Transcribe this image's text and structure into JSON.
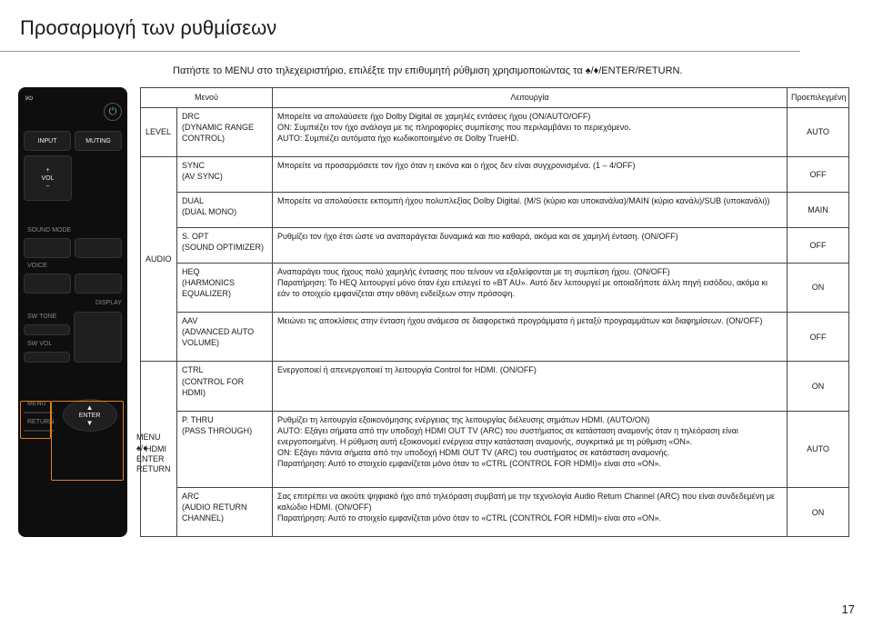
{
  "page": {
    "title": "Προσαρμογή των ρυθμίσεων",
    "intro": "Πατήστε το MENU στο τηλεχειριστήριο, επιλέξτε την επιθυμητή ρύθμιση χρησιμοποιώντας τα ♠/♦/ENTER/RETURN.",
    "number": "17"
  },
  "remote": {
    "indicator": "I/⏻",
    "buttons": {
      "input": "INPUT",
      "muting": "MUTING",
      "vol": "VOL",
      "sound_mode": "SOUND MODE",
      "voice": "VOICE",
      "display": "DISPLAY",
      "sw_tone": "SW TONE",
      "sw_vol": "SW VOL",
      "menu": "MENU",
      "return": "RETURN",
      "enter": "ENTER"
    },
    "caption_lines": [
      "MENU",
      "♠/♦",
      "ENTER",
      "RETURN"
    ]
  },
  "table": {
    "headers": {
      "menu": "Μενού",
      "func": "Λειτουργία",
      "default": "Προεπιλεγμένη"
    },
    "sections": [
      {
        "category": "LEVEL",
        "rows": [
          {
            "menu": "DRC\n(DYNAMIC RANGE CONTROL)",
            "func": "Μπορείτε να απολαύσετε ήχο Dolby Digital σε χαμηλές εντάσεις ήχου (ON/AUTO/OFF)\nON: Συμπιέζει τον ήχο ανάλογα με τις πληροφορίες συμπίεσης που περιλαμβάνει το περιεχόμενο.\nAUTO: Συμπιέζει αυτόματα ήχο κωδικοποιημένο σε Dolby TrueHD.",
            "default": "AUTO"
          }
        ]
      },
      {
        "category": "AUDIO",
        "rows": [
          {
            "menu": "SYNC\n(AV SYNC)",
            "func": "Μπορείτε να προσαρμόσετε τον ήχο όταν η εικόνα και ο ήχος δεν είναι συγχρονισμένα. (1 – 4/OFF)",
            "default": "OFF"
          },
          {
            "menu": "DUAL\n(DUAL MONO)",
            "func": "Μπορείτε να απολαύσετε εκπομπή ήχου πολυπλεξίας Dolby Digital. (M/S (κύριο και υποκανάλια)/MAIN (κύριο κανάλι)/SUB (υποκανάλι))",
            "default": "MAIN"
          },
          {
            "menu": "S. OPT\n(SOUND OPTIMIZER)",
            "func": "Ρυθμίζει τον ήχο έτσι ώστε να αναπαράγεται δυναμικά και πιο καθαρά, ακόμα και σε χαμηλή ένταση. (ON/OFF)",
            "default": "OFF"
          },
          {
            "menu": "HEQ\n(HARMONICS EQUALIZER)",
            "func": "Αναπαράγει τους ήχους πολύ χαμηλής έντασης που τείνουν να εξαλείφονται με τη συμπίεση ήχου. (ON/OFF)\nΠαρατήρηση: Το HEQ λειτουργεί μόνο όταν έχει επιλεγεί το «BT AU». Αυτό δεν λειτουργεί με οποιαδήποτε άλλη πηγή εισόδου, ακόμα κι εάν το στοιχείο εμφανίζεται στην οθόνη ενδείξεων στην πρόσοψη.",
            "default": "ON"
          },
          {
            "menu": "AAV\n(ADVANCED AUTO VOLUME)",
            "func": "Μειώνει τις αποκλίσεις στην ένταση ήχου ανάμεσα σε διαφορετικά προγράμματα ή μεταξύ προγραμμάτων και διαφημίσεων. (ON/OFF)",
            "default": "OFF"
          }
        ]
      },
      {
        "category": "HDMI",
        "rows": [
          {
            "menu": "CTRL\n(CONTROL FOR HDMI)",
            "func": "Ενεργοποιεί ή απενεργοποιεί τη λειτουργία Control for HDMI. (ON/OFF)",
            "default": "ON"
          },
          {
            "menu": "P. THRU\n(PASS THROUGH)",
            "func": "Ρυθμίζει τη λειτουργία εξοικονόμησης ενέργειας της λειτουργίας διέλευσης σημάτων HDMI. (AUTO/ON)\nAUTO: Εξάγει σήματα από την υποδοχή HDMI OUT TV (ARC) του συστήματος σε κατάσταση αναμονής όταν η τηλεόραση είναι ενεργοποιημένη. Η ρύθμιση αυτή εξοικονομεί ενέργεια στην κατάσταση αναμονής, συγκριτικά με τη ρύθμιση «ON».\nON: Εξάγει πάντα σήματα από την υποδοχή HDMI OUT TV (ARC) του συστήματος σε κατάσταση αναμονής.\nΠαρατήρηση: Αυτό το στοιχείο εμφανίζεται μόνο όταν το «CTRL (CONTROL FOR HDMI)» είναι στο «ON».",
            "default": "AUTO"
          },
          {
            "menu": "ARC\n(AUDIO RETURN CHANNEL)",
            "func": "Σας επιτρέπει να ακούτε ψηφιακό ήχο από τηλεόραση συμβατή με την τεχνολογία Audio Return Channel (ARC) που είναι συνδεδεμένη με καλώδιο HDMI. (ON/OFF)\nΠαρατήρηση: Αυτό το στοιχείο εμφανίζεται μόνο όταν το «CTRL (CONTROL FOR HDMI)» είναι στο «ON».",
            "default": "ON"
          }
        ]
      }
    ]
  }
}
